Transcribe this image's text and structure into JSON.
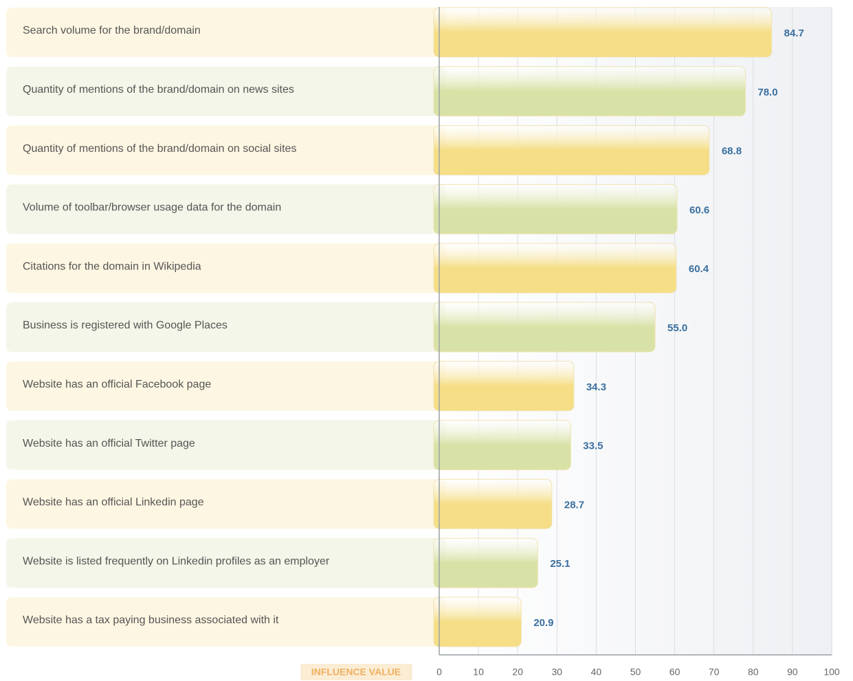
{
  "chart_data": {
    "type": "barh",
    "categories": [
      "Search volume for the brand/domain",
      "Quantity of mentions of the brand/domain on news sites",
      "Quantity of mentions of the brand/domain on social sites",
      "Volume of toolbar/browser usage data for the domain",
      "Citations for the domain in Wikipedia",
      "Business is registered with Google Places",
      "Website has an official Facebook page",
      "Website has an official Twitter page",
      "Website has an official Linkedin page",
      "Website is listed frequently on Linkedin profiles as an employer",
      "Website has a tax paying business associated with it"
    ],
    "values": [
      84.7,
      78,
      68.8,
      60.6,
      60.4,
      55,
      34.3,
      33.5,
      28.7,
      25.1,
      20.9
    ],
    "value_labels": [
      "84.7",
      "78.0",
      "68.8",
      "60.6",
      "60.4",
      "55.0",
      "34.3",
      "33.5",
      "28.7",
      "25.1",
      "20.9"
    ],
    "colors": [
      "#f5de86",
      "#d8e2a6"
    ],
    "xlabel": "INFLUENCE VALUE",
    "xlim": [
      0,
      100
    ],
    "xticks": [
      0,
      10,
      20,
      30,
      40,
      50,
      60,
      70,
      80,
      90,
      100
    ],
    "grid": true
  }
}
